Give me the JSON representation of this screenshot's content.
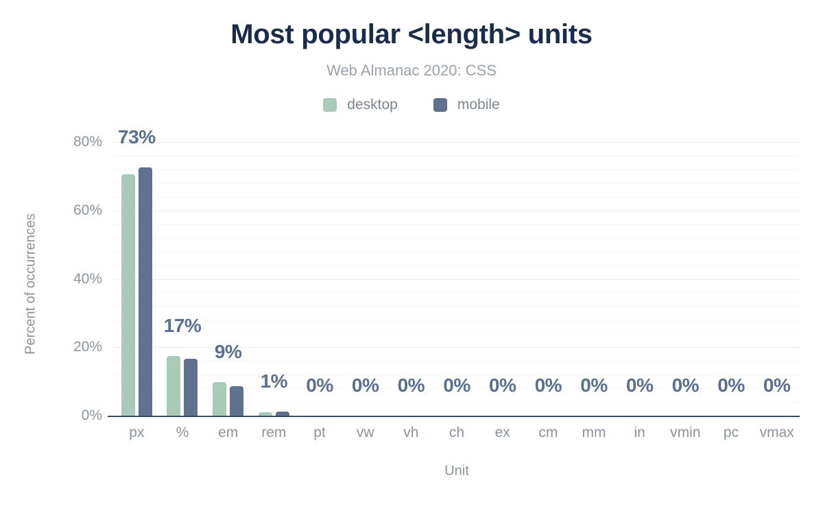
{
  "chart_data": {
    "type": "bar",
    "title": "Most popular <length> units",
    "subtitle": "Web Almanac 2020: CSS",
    "xlabel": "Unit",
    "ylabel": "Percent of occurrences",
    "ylim": [
      0,
      80
    ],
    "yticks": [
      {
        "value": 0,
        "label": "0%"
      },
      {
        "value": 20,
        "label": "20%"
      },
      {
        "value": 40,
        "label": "40%"
      },
      {
        "value": 60,
        "label": "60%"
      },
      {
        "value": 80,
        "label": "80%"
      }
    ],
    "grid": {
      "minor_step": 4,
      "major_step": 20
    },
    "legend_position": "top",
    "categories": [
      "px",
      "%",
      "em",
      "rem",
      "pt",
      "vw",
      "vh",
      "ch",
      "ex",
      "cm",
      "mm",
      "in",
      "vmin",
      "pc",
      "vmax"
    ],
    "series": [
      {
        "name": "desktop",
        "color": "#a8cab8",
        "values": [
          70.5,
          17.5,
          9.9,
          1.1,
          0,
          0,
          0,
          0,
          0,
          0,
          0,
          0,
          0,
          0,
          0
        ]
      },
      {
        "name": "mobile",
        "color": "#5f718e",
        "values": [
          72.6,
          16.6,
          8.6,
          1.2,
          0,
          0,
          0,
          0,
          0,
          0,
          0,
          0,
          0,
          0,
          0
        ]
      }
    ],
    "bar_labels": [
      "73%",
      "17%",
      "9%",
      "1%",
      "0%",
      "0%",
      "0%",
      "0%",
      "0%",
      "0%",
      "0%",
      "0%",
      "0%",
      "0%",
      "0%"
    ],
    "label_color": "#5b6f8e",
    "axis_line_color": "#3b4a63"
  }
}
